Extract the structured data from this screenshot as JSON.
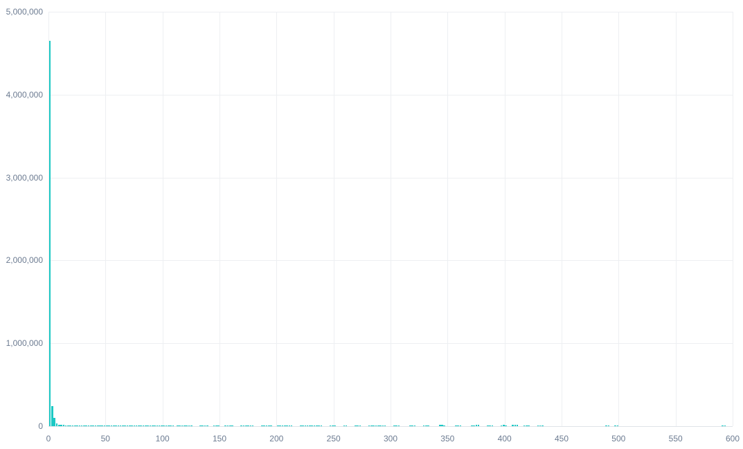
{
  "chart_data": {
    "type": "bar",
    "subtype": "histogram",
    "title": "",
    "xlabel": "",
    "ylabel": "",
    "xlim": [
      0,
      600
    ],
    "ylim": [
      0,
      5000000
    ],
    "grid": true,
    "legend": false,
    "bin_width": 2,
    "x_tick_values": [
      0,
      50,
      100,
      150,
      200,
      250,
      300,
      350,
      400,
      450,
      500,
      550,
      600
    ],
    "x_tick_labels": [
      "0",
      "50",
      "100",
      "150",
      "200",
      "250",
      "300",
      "350",
      "400",
      "450",
      "500",
      "550",
      "600"
    ],
    "y_tick_values": [
      0,
      1000000,
      2000000,
      3000000,
      4000000,
      5000000
    ],
    "y_tick_labels": [
      "0",
      "1,000,000",
      "2,000,000",
      "3,000,000",
      "4,000,000",
      "5,000,000"
    ],
    "bars": [
      [
        0,
        4650000
      ],
      [
        2,
        242000
      ],
      [
        4,
        100000
      ],
      [
        6,
        33000
      ],
      [
        8,
        21000
      ],
      [
        10,
        17000
      ],
      [
        12,
        14000
      ],
      [
        14,
        12000
      ],
      [
        16,
        10000
      ],
      [
        18,
        8000
      ],
      [
        20,
        8000
      ],
      [
        22,
        8000
      ],
      [
        24,
        8000
      ],
      [
        26,
        10000
      ],
      [
        28,
        8000
      ],
      [
        30,
        8000
      ],
      [
        32,
        8000
      ],
      [
        34,
        10000
      ],
      [
        36,
        8000
      ],
      [
        38,
        8000
      ],
      [
        40,
        8000
      ],
      [
        42,
        8000
      ],
      [
        44,
        9000
      ],
      [
        46,
        8000
      ],
      [
        48,
        8000
      ],
      [
        50,
        8000
      ],
      [
        52,
        8000
      ],
      [
        54,
        8000
      ],
      [
        56,
        8000
      ],
      [
        58,
        8000
      ],
      [
        60,
        9000
      ],
      [
        62,
        8000
      ],
      [
        64,
        8000
      ],
      [
        66,
        8000
      ],
      [
        68,
        8000
      ],
      [
        70,
        8000
      ],
      [
        72,
        8000
      ],
      [
        74,
        8000
      ],
      [
        76,
        8000
      ],
      [
        78,
        9000
      ],
      [
        80,
        8000
      ],
      [
        82,
        8000
      ],
      [
        84,
        8000
      ],
      [
        86,
        8000
      ],
      [
        88,
        8000
      ],
      [
        90,
        8000
      ],
      [
        92,
        8000
      ],
      [
        94,
        8000
      ],
      [
        96,
        8000
      ],
      [
        98,
        8000
      ],
      [
        100,
        8000
      ],
      [
        102,
        8000
      ],
      [
        104,
        8000
      ],
      [
        106,
        8000
      ],
      [
        108,
        8000
      ],
      [
        112,
        8000
      ],
      [
        114,
        8000
      ],
      [
        116,
        8000
      ],
      [
        118,
        8000
      ],
      [
        120,
        8000
      ],
      [
        122,
        8000
      ],
      [
        124,
        8000
      ],
      [
        132,
        8000
      ],
      [
        134,
        8000
      ],
      [
        136,
        8000
      ],
      [
        138,
        8000
      ],
      [
        144,
        8000
      ],
      [
        146,
        8000
      ],
      [
        148,
        8000
      ],
      [
        154,
        8000
      ],
      [
        156,
        8000
      ],
      [
        158,
        8000
      ],
      [
        160,
        8000
      ],
      [
        168,
        8000
      ],
      [
        170,
        8000
      ],
      [
        172,
        8000
      ],
      [
        174,
        8000
      ],
      [
        176,
        8000
      ],
      [
        178,
        8000
      ],
      [
        186,
        8000
      ],
      [
        188,
        8000
      ],
      [
        190,
        8000
      ],
      [
        192,
        8000
      ],
      [
        194,
        8000
      ],
      [
        200,
        8000
      ],
      [
        202,
        8000
      ],
      [
        204,
        8000
      ],
      [
        206,
        8000
      ],
      [
        208,
        8000
      ],
      [
        210,
        8000
      ],
      [
        212,
        8000
      ],
      [
        220,
        8000
      ],
      [
        222,
        8000
      ],
      [
        224,
        8000
      ],
      [
        226,
        8000
      ],
      [
        228,
        8000
      ],
      [
        230,
        8000
      ],
      [
        232,
        8000
      ],
      [
        234,
        8000
      ],
      [
        236,
        8000
      ],
      [
        238,
        8000
      ],
      [
        246,
        8000
      ],
      [
        248,
        8000
      ],
      [
        250,
        8000
      ],
      [
        258,
        8000
      ],
      [
        260,
        8000
      ],
      [
        268,
        8000
      ],
      [
        270,
        8000
      ],
      [
        272,
        8000
      ],
      [
        280,
        8000
      ],
      [
        282,
        8000
      ],
      [
        284,
        8000
      ],
      [
        286,
        8000
      ],
      [
        288,
        8000
      ],
      [
        290,
        8000
      ],
      [
        292,
        8000
      ],
      [
        294,
        8000
      ],
      [
        302,
        8000
      ],
      [
        304,
        8000
      ],
      [
        306,
        8000
      ],
      [
        316,
        8000
      ],
      [
        318,
        8000
      ],
      [
        320,
        8000
      ],
      [
        328,
        8000
      ],
      [
        330,
        8000
      ],
      [
        332,
        8000
      ],
      [
        342,
        14000
      ],
      [
        344,
        14000
      ],
      [
        346,
        12000
      ],
      [
        356,
        8000
      ],
      [
        358,
        8000
      ],
      [
        360,
        8000
      ],
      [
        370,
        8000
      ],
      [
        372,
        8000
      ],
      [
        374,
        16000
      ],
      [
        376,
        16000
      ],
      [
        384,
        8000
      ],
      [
        386,
        8000
      ],
      [
        388,
        8000
      ],
      [
        396,
        8000
      ],
      [
        398,
        14000
      ],
      [
        400,
        8000
      ],
      [
        406,
        16000
      ],
      [
        408,
        16000
      ],
      [
        410,
        14000
      ],
      [
        416,
        8000
      ],
      [
        418,
        8000
      ],
      [
        420,
        8000
      ],
      [
        428,
        8000
      ],
      [
        430,
        8000
      ],
      [
        432,
        8000
      ],
      [
        488,
        8000
      ],
      [
        490,
        8000
      ],
      [
        496,
        8000
      ],
      [
        498,
        8000
      ],
      [
        590,
        8000
      ],
      [
        592,
        8000
      ]
    ]
  },
  "colors": {
    "bar": "#1cc8c4",
    "gridline": "#edeff2",
    "baseline": "#dfe3e8",
    "tick_label": "#6c7b91",
    "background": "#ffffff"
  }
}
